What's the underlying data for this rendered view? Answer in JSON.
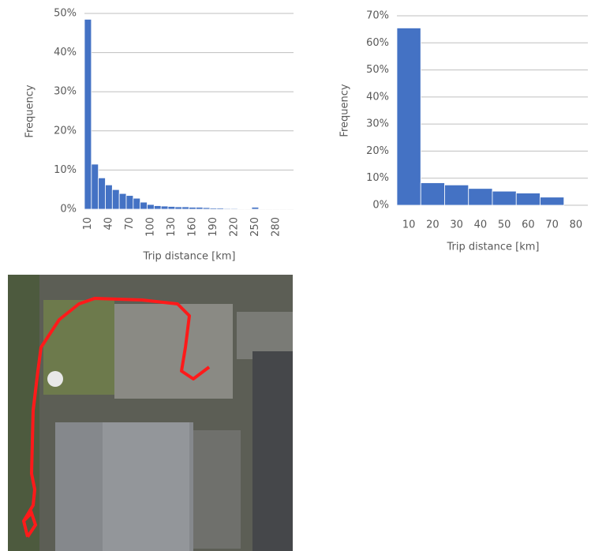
{
  "chart_data": [
    {
      "type": "bar",
      "y_label": "Frequency",
      "x_label": "Trip distance [km]",
      "color": "#4472c4",
      "grid": true,
      "categories": [
        "10",
        null,
        null,
        "40",
        null,
        null,
        "70",
        null,
        null,
        "100",
        null,
        null,
        "130",
        null,
        null,
        "160",
        null,
        null,
        "190",
        null,
        null,
        "220",
        null,
        null,
        "250",
        null,
        null,
        "280",
        null,
        null
      ],
      "values": [
        48.5,
        11.5,
        8,
        6.2,
        5,
        4,
        3.5,
        2.8,
        1.8,
        1.2,
        0.9,
        0.8,
        0.7,
        0.6,
        0.6,
        0.5,
        0.5,
        0.4,
        0.3,
        0.3,
        0.2,
        0.2,
        0.1,
        0.1,
        0.5,
        0.1,
        0.1,
        0.1,
        0.1,
        0.05
      ],
      "ylim": [
        0,
        50
      ],
      "yticks": [
        {
          "value": 0,
          "label": "0%"
        },
        {
          "value": 10,
          "label": "10%"
        },
        {
          "value": 20,
          "label": "20%"
        },
        {
          "value": 30,
          "label": "30%"
        },
        {
          "value": 40,
          "label": "40%"
        },
        {
          "value": 50,
          "label": "50%"
        }
      ]
    },
    {
      "type": "bar",
      "y_label": "Frequency",
      "x_label": "Trip distance [km]",
      "color": "#4472c4",
      "grid": true,
      "categories": [
        "10",
        "20",
        "30",
        "40",
        "50",
        "60",
        "70",
        "80"
      ],
      "values": [
        65.5,
        8.3,
        7.5,
        6.2,
        5.2,
        4.5,
        3,
        0
      ],
      "ylim": [
        0,
        70
      ],
      "yticks": [
        {
          "value": 0,
          "label": "0%"
        },
        {
          "value": 10,
          "label": "10%"
        },
        {
          "value": 20,
          "label": "20%"
        },
        {
          "value": 30,
          "label": "30%"
        },
        {
          "value": 40,
          "label": "40%"
        },
        {
          "value": 50,
          "label": "50%"
        },
        {
          "value": 60,
          "label": "60%"
        },
        {
          "value": 70,
          "label": "70%"
        }
      ]
    }
  ]
}
